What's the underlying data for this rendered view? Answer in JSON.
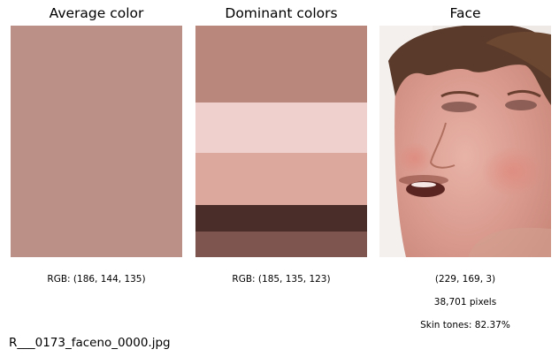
{
  "panels": {
    "average": {
      "title": "Average color",
      "rgb_text": "RGB: (186, 144, 135)",
      "color": "#ba9087"
    },
    "dominant": {
      "title": "Dominant colors",
      "rgb_text": "RGB: (185, 135, 123)",
      "bands": [
        {
          "color": "#b9877b",
          "fraction": 0.333
        },
        {
          "color": "#f0d0cc",
          "fraction": 0.218
        },
        {
          "color": "#dca89e",
          "fraction": 0.225
        },
        {
          "color": "#4a2c28",
          "fraction": 0.115
        },
        {
          "color": "#7e564f",
          "fraction": 0.109
        }
      ]
    },
    "face": {
      "title": "Face",
      "rgb_text": "(229, 169, 3)",
      "pixels_text": "38,701 pixels",
      "skin_text": "Skin tones: 82.37%"
    }
  },
  "filename": "R___0173_faceno_0000.jpg"
}
